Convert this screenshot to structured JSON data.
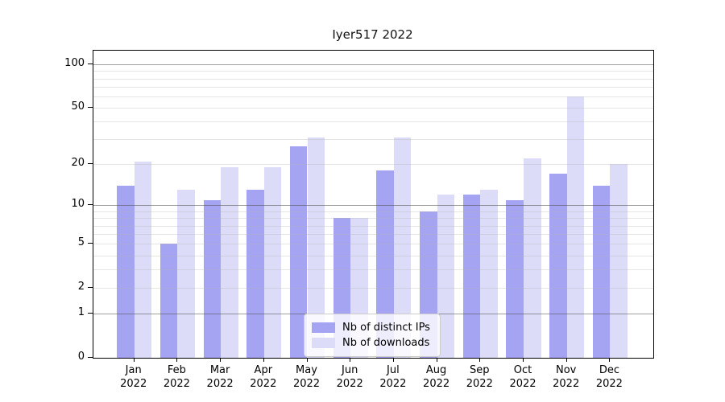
{
  "title": "Iyer517 2022",
  "chart_data": {
    "type": "bar",
    "title": "Iyer517 2022",
    "categories": [
      "Jan 2022",
      "Feb 2022",
      "Mar 2022",
      "Apr 2022",
      "May 2022",
      "Jun 2022",
      "Jul 2022",
      "Aug 2022",
      "Sep 2022",
      "Oct 2022",
      "Nov 2022",
      "Dec 2022"
    ],
    "month_labels": [
      "Jan",
      "Feb",
      "Mar",
      "Apr",
      "May",
      "Jun",
      "Jul",
      "Aug",
      "Sep",
      "Oct",
      "Nov",
      "Dec"
    ],
    "year_label": "2022",
    "series": [
      {
        "name": "Nb of distinct IPs",
        "color": "#a4a4f2",
        "values": [
          14,
          5,
          11,
          13,
          27,
          8,
          18,
          9,
          12,
          11,
          17,
          14
        ]
      },
      {
        "name": "Nb of downloads",
        "color": "#dcdcf9",
        "values": [
          21,
          13,
          19,
          19,
          31,
          8,
          31,
          12,
          13,
          22,
          60,
          20
        ]
      }
    ],
    "y_ticks": [
      0,
      1,
      2,
      5,
      10,
      20,
      50,
      100
    ],
    "y_scale": "log1p",
    "ylim": [
      0,
      124
    ],
    "xlabel": "",
    "ylabel": "",
    "grid": "horizontal major (1,10,100) + minor (2-9, 20-90)",
    "legend_position": "lower center",
    "colors": {
      "major_grid": "#9f9f9f",
      "minor_grid": "#e5e5e5",
      "spine": "#000000",
      "background": "#ffffff",
      "text": "#000000"
    }
  }
}
